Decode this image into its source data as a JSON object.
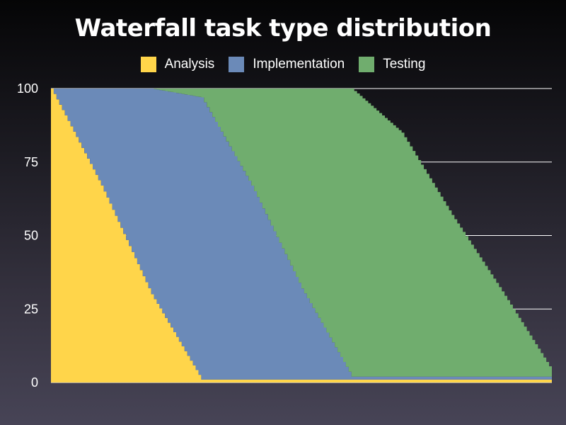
{
  "chart_data": {
    "type": "area",
    "stacked": true,
    "title": "Waterfall task type distribution",
    "xlabel": "",
    "ylabel": "",
    "ylim": [
      0,
      100
    ],
    "yticks": [
      0,
      25,
      50,
      75,
      100
    ],
    "grid": "horizontal",
    "legend_position": "top",
    "x": [
      0,
      0.1,
      0.2,
      0.3,
      0.4,
      0.5,
      0.6,
      0.7,
      0.8,
      0.9,
      1.0
    ],
    "series": [
      {
        "name": "Analysis",
        "color": "#FFD54A",
        "values": [
          100,
          67,
          30,
          1,
          1,
          1,
          1,
          1,
          1,
          1,
          1
        ]
      },
      {
        "name": "Implementation",
        "color": "#6B8AB8",
        "values": [
          0,
          33,
          70,
          96,
          66,
          31,
          1,
          1,
          1,
          1,
          1
        ]
      },
      {
        "name": "Testing",
        "color": "#70AD6E",
        "values": [
          0,
          0,
          0,
          3,
          33,
          68,
          98,
          83,
          55,
          29,
          2
        ]
      }
    ]
  }
}
